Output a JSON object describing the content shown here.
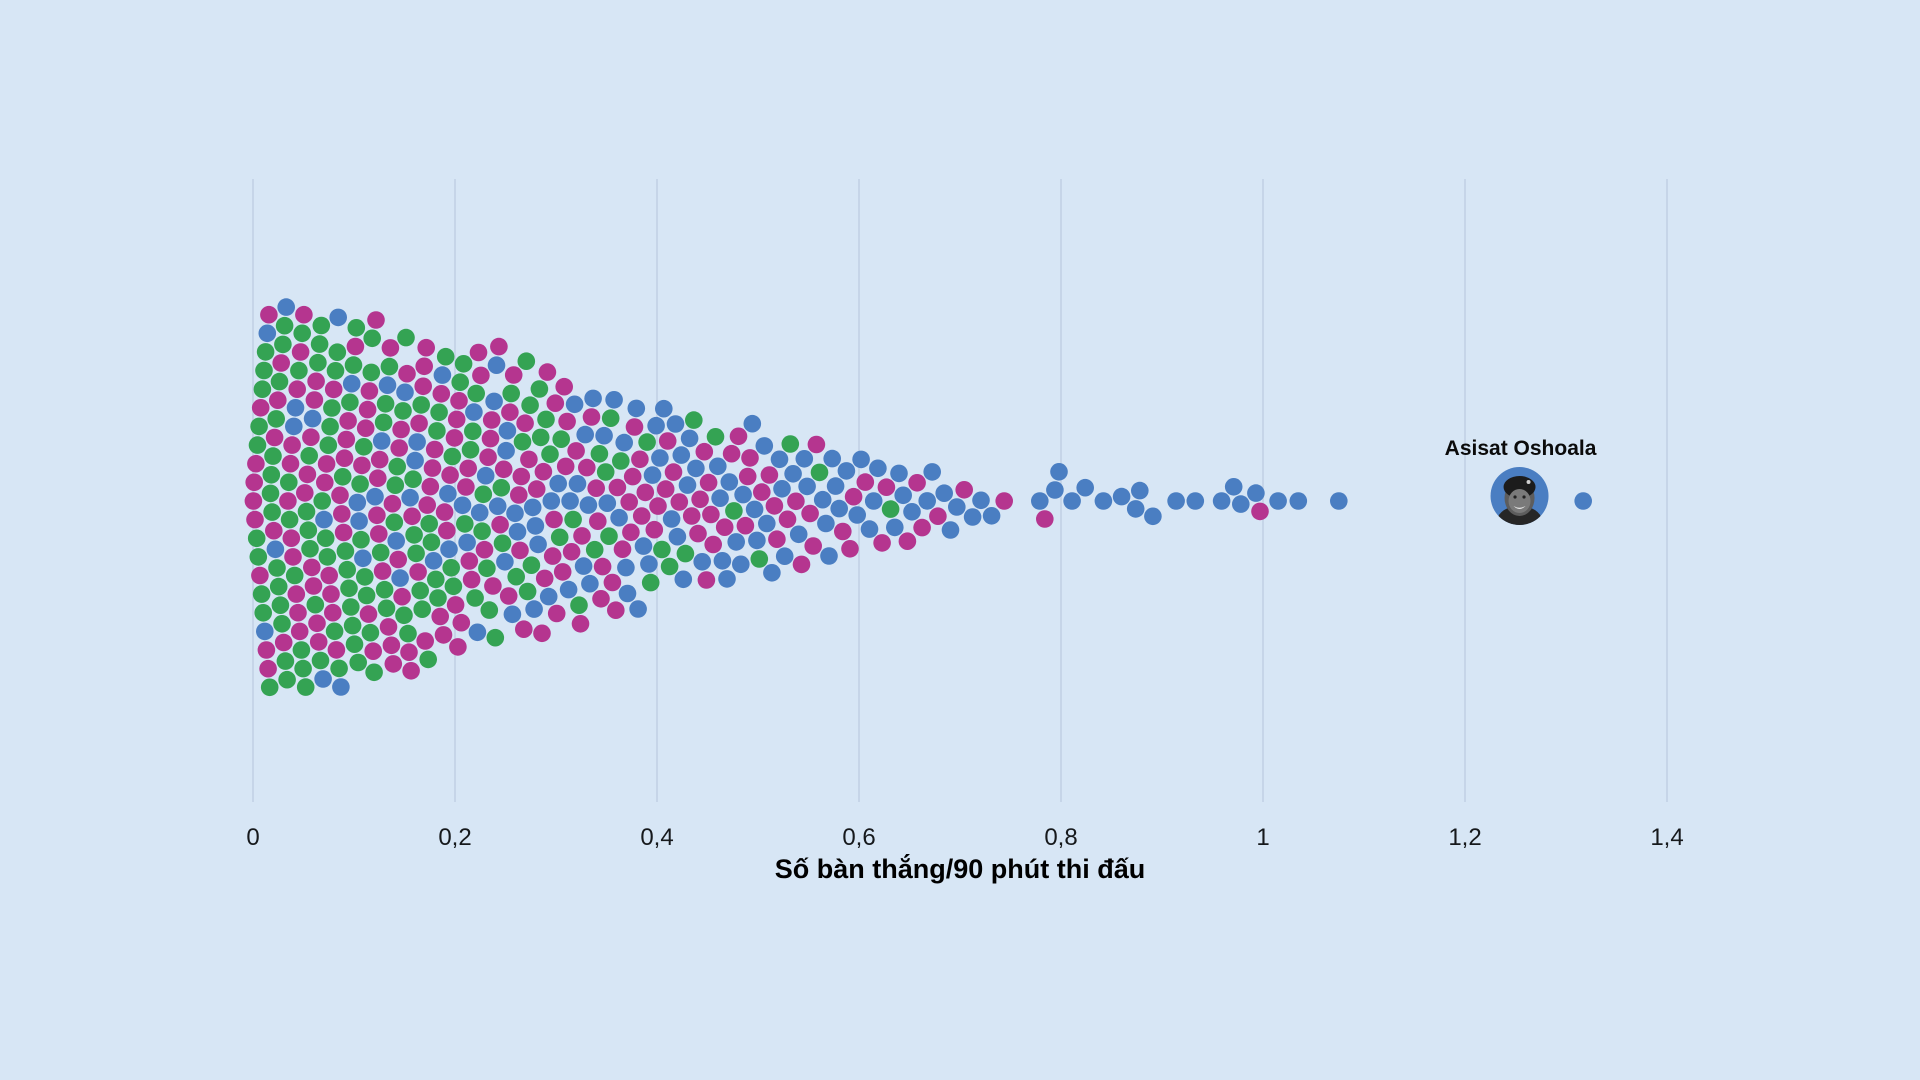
{
  "colors": {
    "background": "#d7e6f5",
    "gridline": "#c6d5e8",
    "text": "#16191c",
    "annotation_text": "#0b0b0b"
  },
  "chart_data": {
    "type": "beeswarm",
    "title": "",
    "xlabel": "Số bàn thắng/90 phút thi đấu",
    "ylabel": "",
    "x_domain": [
      0,
      1.4
    ],
    "grid": true,
    "legend": "none",
    "x_ticks": [
      {
        "v": 0,
        "label": "0"
      },
      {
        "v": 0.2,
        "label": "0,2"
      },
      {
        "v": 0.4,
        "label": "0,4"
      },
      {
        "v": 0.6,
        "label": "0,6"
      },
      {
        "v": 0.8,
        "label": "0,8"
      },
      {
        "v": 1,
        "label": "1"
      },
      {
        "v": 1.2,
        "label": "1,2"
      },
      {
        "v": 1.4,
        "label": "1,4"
      }
    ],
    "categories": {
      "green": "#34a353",
      "magenta": "#b5358f",
      "blue": "#4a7ec2"
    },
    "bins_note": "Binned reading of the dense swarm: each bin is goals-per-90 range [x0, x0+0.025) with dot counts per colour category.",
    "bins": [
      {
        "x0": 0.0,
        "green": 16,
        "magenta": 12,
        "blue": 3
      },
      {
        "x0": 0.025,
        "green": 15,
        "magenta": 12,
        "blue": 3
      },
      {
        "x0": 0.05,
        "green": 14,
        "magenta": 12,
        "blue": 3
      },
      {
        "x0": 0.075,
        "green": 14,
        "magenta": 11,
        "blue": 3
      },
      {
        "x0": 0.1,
        "green": 12,
        "magenta": 11,
        "blue": 4
      },
      {
        "x0": 0.125,
        "green": 11,
        "magenta": 11,
        "blue": 4
      },
      {
        "x0": 0.15,
        "green": 10,
        "magenta": 11,
        "blue": 4
      },
      {
        "x0": 0.175,
        "green": 9,
        "magenta": 10,
        "blue": 4
      },
      {
        "x0": 0.2,
        "green": 7,
        "magenta": 10,
        "blue": 5
      },
      {
        "x0": 0.225,
        "green": 7,
        "magenta": 9,
        "blue": 5
      },
      {
        "x0": 0.25,
        "green": 6,
        "magenta": 9,
        "blue": 5
      },
      {
        "x0": 0.275,
        "green": 5,
        "magenta": 8,
        "blue": 6
      },
      {
        "x0": 0.3,
        "green": 4,
        "magenta": 8,
        "blue": 5
      },
      {
        "x0": 0.325,
        "green": 3,
        "magenta": 7,
        "blue": 6
      },
      {
        "x0": 0.35,
        "green": 3,
        "magenta": 6,
        "blue": 6
      },
      {
        "x0": 0.375,
        "green": 2,
        "magenta": 6,
        "blue": 6
      },
      {
        "x0": 0.4,
        "green": 2,
        "magenta": 5,
        "blue": 6
      },
      {
        "x0": 0.425,
        "green": 2,
        "magenta": 5,
        "blue": 5
      },
      {
        "x0": 0.45,
        "green": 1,
        "magenta": 5,
        "blue": 5
      },
      {
        "x0": 0.475,
        "green": 1,
        "magenta": 4,
        "blue": 6
      },
      {
        "x0": 0.5,
        "green": 1,
        "magenta": 4,
        "blue": 5
      },
      {
        "x0": 0.525,
        "green": 1,
        "magenta": 3,
        "blue": 5
      },
      {
        "x0": 0.55,
        "green": 1,
        "magenta": 3,
        "blue": 4
      },
      {
        "x0": 0.575,
        "green": 0,
        "magenta": 3,
        "blue": 4
      },
      {
        "x0": 0.6,
        "green": 0,
        "magenta": 2,
        "blue": 4
      },
      {
        "x0": 0.625,
        "green": 1,
        "magenta": 2,
        "blue": 3
      },
      {
        "x0": 0.65,
        "green": 0,
        "magenta": 2,
        "blue": 3
      },
      {
        "x0": 0.675,
        "green": 0,
        "magenta": 1,
        "blue": 3
      },
      {
        "x0": 0.7,
        "green": 0,
        "magenta": 1,
        "blue": 2
      },
      {
        "x0": 0.725,
        "green": 0,
        "magenta": 1,
        "blue": 1
      }
    ],
    "bin_width": 0.025,
    "points": [
      {
        "x": 0.779,
        "color": "blue"
      },
      {
        "x": 0.784,
        "color": "magenta"
      },
      {
        "x": 0.794,
        "color": "blue"
      },
      {
        "x": 0.798,
        "color": "blue"
      },
      {
        "x": 0.811,
        "color": "blue"
      },
      {
        "x": 0.824,
        "color": "blue"
      },
      {
        "x": 0.842,
        "color": "blue"
      },
      {
        "x": 0.86,
        "color": "blue"
      },
      {
        "x": 0.874,
        "color": "blue"
      },
      {
        "x": 0.878,
        "color": "blue"
      },
      {
        "x": 0.891,
        "color": "blue"
      },
      {
        "x": 0.914,
        "color": "blue"
      },
      {
        "x": 0.933,
        "color": "blue"
      },
      {
        "x": 0.959,
        "color": "blue"
      },
      {
        "x": 0.971,
        "color": "blue"
      },
      {
        "x": 0.978,
        "color": "blue"
      },
      {
        "x": 0.993,
        "color": "blue"
      },
      {
        "x": 0.997,
        "color": "magenta"
      },
      {
        "x": 1.015,
        "color": "blue"
      },
      {
        "x": 1.035,
        "color": "blue"
      },
      {
        "x": 1.075,
        "color": "blue"
      },
      {
        "x": 1.317,
        "color": "blue"
      }
    ],
    "highlight": {
      "label": "Asisat Oshoala",
      "x": 1.254,
      "color": "blue",
      "avatar": "grayscale-player-photo-in-blue-circle"
    }
  }
}
